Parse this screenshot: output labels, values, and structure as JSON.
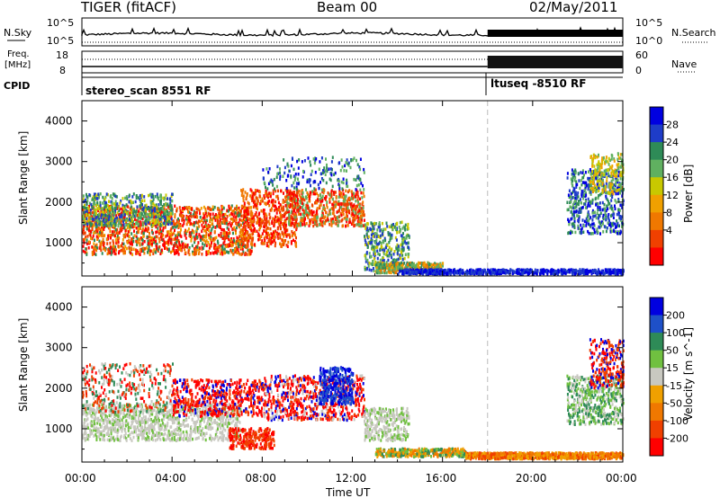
{
  "header": {
    "radar_title": "TIGER (fitACF)",
    "beam": "Beam 00",
    "date": "02/May/2011"
  },
  "status_panels": {
    "nsky_label": "N.Sky",
    "nsky_top": "10^5",
    "nsky_bottom": "10^0",
    "nsearch_label": "N.Search",
    "freq_label_1": "Freq.",
    "freq_label_2": "[MHz]",
    "freq_top": "18",
    "freq_bottom": "8",
    "nave_label": "Nave",
    "nave_top": "60",
    "nave_bottom": "0",
    "cpid_label": "CPID",
    "cpid_1": "stereo_scan 8551 RF",
    "cpid_2": "ltuseq -8510 RF"
  },
  "colors": {
    "power_scale": [
      "#0000e0",
      "#1e3cc8",
      "#2e8b57",
      "#60b060",
      "#c8c800",
      "#f0a000",
      "#f07800",
      "#f04000",
      "#ff0000"
    ],
    "velocity_scale": [
      "#0000e0",
      "#1e50c8",
      "#2e8b57",
      "#70c040",
      "#c8c8c0",
      "#f0a000",
      "#f07800",
      "#f04000",
      "#ff0000"
    ]
  },
  "chart_data": [
    {
      "type": "heatmap",
      "name": "power",
      "ylabel": "Slant Range [km]",
      "ylim": [
        180,
        4500
      ],
      "yticks": [
        "4000",
        "3000",
        "2000",
        "1000"
      ],
      "ytick_values": [
        4000,
        3000,
        2000,
        1000
      ],
      "colorbar_label": "Power [dB]",
      "colorbar_ticks": [
        "28",
        "24",
        "20",
        "16",
        "12",
        "8",
        "4"
      ]
    },
    {
      "type": "heatmap",
      "name": "velocity",
      "ylabel": "Slant Range [km]",
      "ylim": [
        180,
        4500
      ],
      "yticks": [
        "4000",
        "3000",
        "2000",
        "1000"
      ],
      "ytick_values": [
        4000,
        3000,
        2000,
        1000
      ],
      "colorbar_label": "Velocity [m s^-1]",
      "colorbar_ticks": [
        "200",
        "100",
        "50",
        "15",
        "-15",
        "-50",
        "-100",
        "-200"
      ]
    }
  ],
  "time_axis": {
    "xlabel": "Time UT",
    "ticks": [
      "00:00",
      "04:00",
      "08:00",
      "12:00",
      "16:00",
      "20:00",
      "00:00"
    ],
    "tick_hours": [
      0,
      4,
      8,
      12,
      16,
      20,
      24
    ],
    "mode_change_hour": 18
  }
}
